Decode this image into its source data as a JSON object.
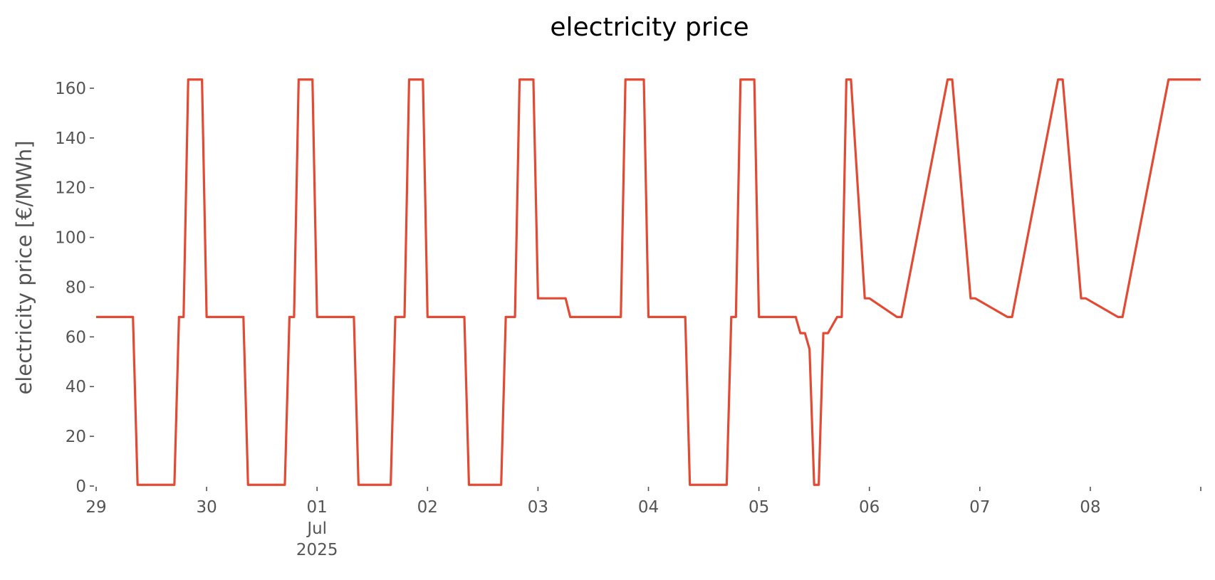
{
  "chart_data": {
    "type": "line",
    "title": "electricity price",
    "xlabel": "",
    "ylabel": "electricity price [€/MWh]",
    "grid": false,
    "line_color": "#E24A33",
    "xlim": [
      0,
      240
    ],
    "ylim": [
      0,
      168
    ],
    "yticks": [
      {
        "value": 0,
        "label": "0"
      },
      {
        "value": 20,
        "label": "20"
      },
      {
        "value": 40,
        "label": "40"
      },
      {
        "value": 60,
        "label": "60"
      },
      {
        "value": 80,
        "label": "80"
      },
      {
        "value": 100,
        "label": "100"
      },
      {
        "value": 120,
        "label": "120"
      },
      {
        "value": 140,
        "label": "140"
      },
      {
        "value": 160,
        "label": "160"
      }
    ],
    "xticks": [
      {
        "value": 0,
        "label": "29",
        "sub": []
      },
      {
        "value": 24,
        "label": "30",
        "sub": []
      },
      {
        "value": 48,
        "label": "01",
        "sub": [
          "Jul",
          "2025"
        ]
      },
      {
        "value": 72,
        "label": "02",
        "sub": []
      },
      {
        "value": 96,
        "label": "03",
        "sub": []
      },
      {
        "value": 120,
        "label": "04",
        "sub": []
      },
      {
        "value": 144,
        "label": "05",
        "sub": []
      },
      {
        "value": 168,
        "label": "06",
        "sub": []
      },
      {
        "value": 192,
        "label": "07",
        "sub": []
      },
      {
        "value": 216,
        "label": "08",
        "sub": []
      },
      {
        "value": 240,
        "label": "",
        "sub": []
      }
    ],
    "series": [
      {
        "x": [
          0,
          8,
          9,
          17,
          18,
          19,
          20,
          23,
          24,
          32,
          33,
          41,
          42,
          43,
          44,
          47,
          48,
          56,
          57,
          64,
          65,
          67,
          68,
          71,
          72,
          80,
          81,
          88,
          89,
          91,
          92,
          95,
          96,
          102,
          103,
          114,
          115,
          119,
          120,
          128,
          129,
          137,
          138,
          139,
          140,
          143,
          144,
          152,
          153,
          154,
          155,
          156,
          157,
          158,
          159,
          161,
          162,
          163,
          164,
          167,
          168,
          174,
          175,
          185,
          186,
          190,
          191,
          198,
          199,
          209,
          210,
          214,
          215,
          222,
          223,
          233,
          234,
          240
        ],
        "y": [
          68,
          68,
          0.5,
          0.5,
          68,
          68,
          163.5,
          163.5,
          68,
          68,
          0.5,
          0.5,
          68,
          68,
          163.5,
          163.5,
          68,
          68,
          0.5,
          0.5,
          68,
          68,
          163.5,
          163.5,
          68,
          68,
          0.5,
          0.5,
          68,
          68,
          163.5,
          163.5,
          75.5,
          75.5,
          68,
          68,
          163.5,
          163.5,
          68,
          68,
          0.5,
          0.5,
          68,
          68,
          163.5,
          163.5,
          68,
          68,
          61.5,
          61.5,
          55,
          0.5,
          0.5,
          61.5,
          61.5,
          68,
          68,
          163.5,
          163.5,
          75.5,
          75.5,
          68,
          68,
          163.5,
          163.5,
          75.5,
          75.5,
          68,
          68,
          163.5,
          163.5,
          75.5,
          75.5,
          68,
          68,
          163.5,
          163.5,
          163.5
        ]
      }
    ]
  }
}
